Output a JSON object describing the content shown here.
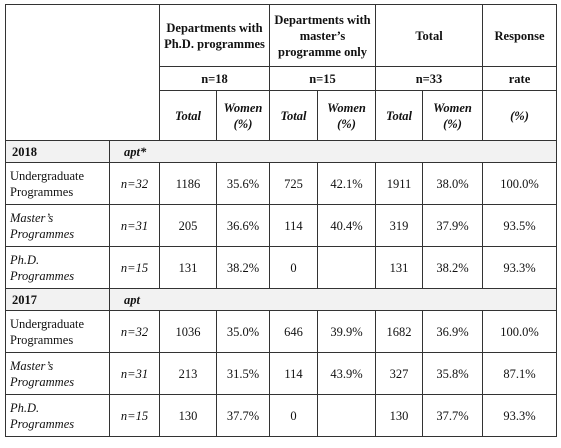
{
  "header": {
    "col_groups": [
      "Departments with Ph.D. programmes",
      "Departments with master’s programme only",
      "Total",
      "Response"
    ],
    "n_row": [
      "n=18",
      "n=15",
      "n=33",
      "rate"
    ],
    "sub_row": [
      "Total",
      "Women (%)",
      "Total",
      "Women (%)",
      "Total",
      "Women (%)",
      "(%)"
    ]
  },
  "sections": [
    {
      "year": "2018",
      "note": "apt*",
      "rows": [
        {
          "label": "Undergraduate Programmes",
          "n": "n=32",
          "italic": false,
          "v": [
            "1186",
            "35.6%",
            "725",
            "42.1%",
            "1911",
            "38.0%",
            "100.0%"
          ]
        },
        {
          "label": "Master’s Programmes",
          "n": "n=31",
          "italic": true,
          "v": [
            "205",
            "36.6%",
            "114",
            "40.4%",
            "319",
            "37.9%",
            "93.5%"
          ]
        },
        {
          "label": "Ph.D. Programmes",
          "n": "n=15",
          "italic": true,
          "v": [
            "131",
            "38.2%",
            "0",
            "",
            "131",
            "38.2%",
            "93.3%"
          ]
        }
      ]
    },
    {
      "year": "2017",
      "note": "apt",
      "rows": [
        {
          "label": "Undergraduate Programmes",
          "n": "n=32",
          "italic": false,
          "v": [
            "1036",
            "35.0%",
            "646",
            "39.9%",
            "1682",
            "36.9%",
            "100.0%"
          ]
        },
        {
          "label": "Master’s Programmes",
          "n": "n=31",
          "italic": true,
          "v": [
            "213",
            "31.5%",
            "114",
            "43.9%",
            "327",
            "35.8%",
            "87.1%"
          ]
        },
        {
          "label": "Ph.D. Programmes",
          "n": "n=15",
          "italic": true,
          "v": [
            "130",
            "37.7%",
            "0",
            "",
            "130",
            "37.7%",
            "93.3%"
          ]
        }
      ]
    }
  ]
}
